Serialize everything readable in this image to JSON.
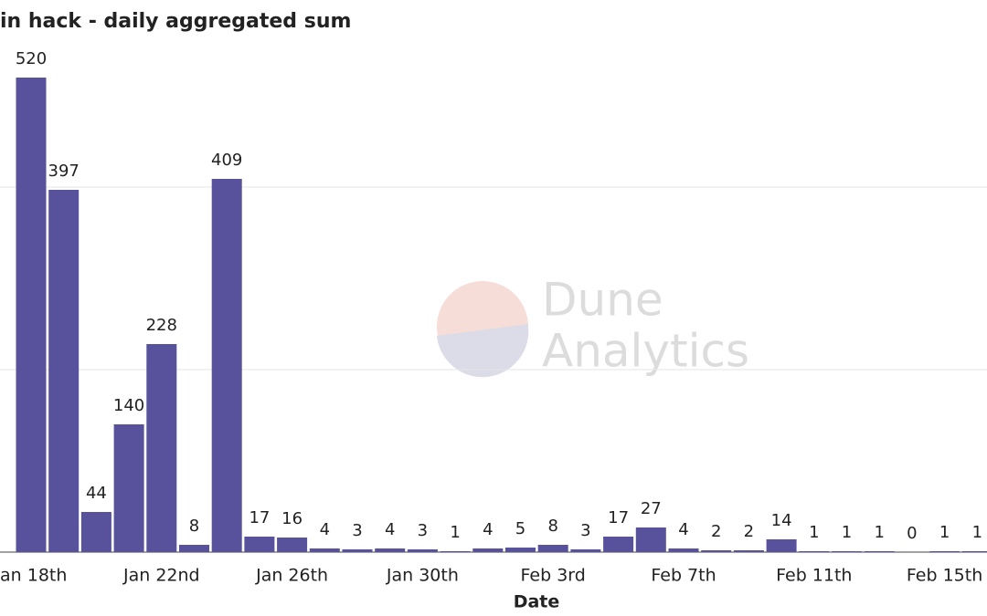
{
  "chart_data": {
    "type": "bar",
    "title": "in hack - daily aggregated sum",
    "x_label": "Date",
    "watermark": [
      "Dune",
      "Analytics"
    ],
    "categories": [
      "an 18th",
      null,
      null,
      null,
      "Jan 22nd",
      null,
      null,
      null,
      "Jan 26th",
      null,
      null,
      null,
      "Jan 30th",
      null,
      null,
      null,
      "Feb 3rd",
      null,
      null,
      null,
      "Feb 7th",
      null,
      null,
      null,
      "Feb 11th",
      null,
      null,
      null,
      "Feb 15th",
      null
    ],
    "values": [
      520,
      397,
      44,
      140,
      228,
      8,
      409,
      17,
      16,
      4,
      3,
      4,
      3,
      1,
      4,
      5,
      8,
      3,
      17,
      27,
      4,
      2,
      2,
      14,
      1,
      1,
      1,
      0,
      1,
      1
    ],
    "color": "#58519b",
    "ylim": [
      0,
      600
    ],
    "yticks": [
      0,
      200,
      400
    ],
    "grid": true
  }
}
